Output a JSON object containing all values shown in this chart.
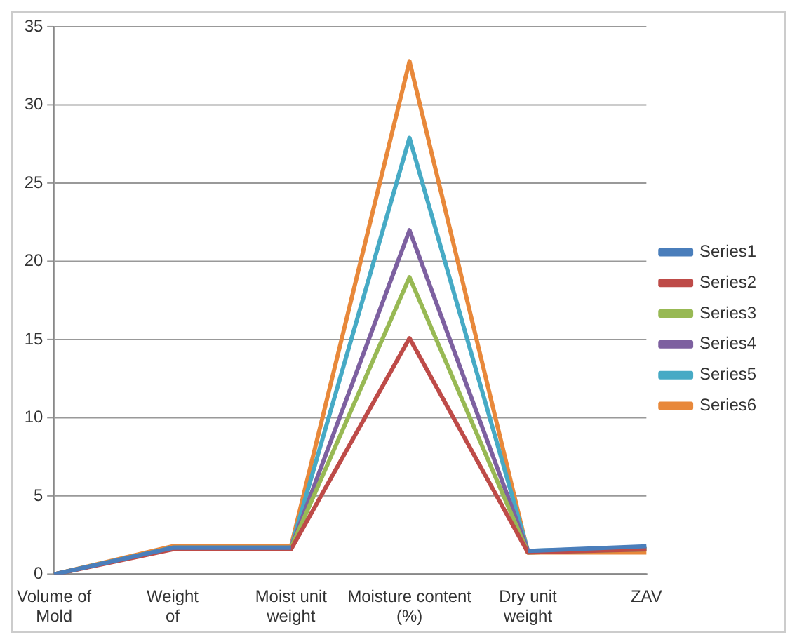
{
  "chart_data": {
    "type": "line",
    "categories": [
      "Volume of Mold",
      "Weight of",
      "Moist unit weight",
      "Moisture content (%)",
      "Dry unit weight",
      "ZAV"
    ],
    "series": [
      {
        "name": "Series1",
        "color": "#4a7ebb",
        "values": [
          0,
          1.7,
          1.7,
          null,
          1.5,
          1.8
        ]
      },
      {
        "name": "Series2",
        "color": "#be4b48",
        "values": [
          0,
          1.6,
          1.6,
          15.1,
          1.4,
          1.6
        ]
      },
      {
        "name": "Series3",
        "color": "#98b954",
        "values": [
          0,
          1.7,
          1.7,
          19,
          1.4,
          1.6
        ]
      },
      {
        "name": "Series4",
        "color": "#7d60a0",
        "values": [
          0,
          1.7,
          1.7,
          22,
          1.5,
          1.6
        ]
      },
      {
        "name": "Series5",
        "color": "#46aac5",
        "values": [
          0,
          1.7,
          1.7,
          27.9,
          1.5,
          1.7
        ]
      },
      {
        "name": "Series6",
        "color": "#e8883a",
        "values": [
          0,
          1.8,
          1.8,
          32.8,
          1.4,
          1.4
        ]
      }
    ],
    "ylim": [
      0,
      35
    ],
    "yticks": [
      0,
      5,
      10,
      15,
      20,
      25,
      30,
      35
    ],
    "grid": "y",
    "legend": "right",
    "marker": "none"
  }
}
